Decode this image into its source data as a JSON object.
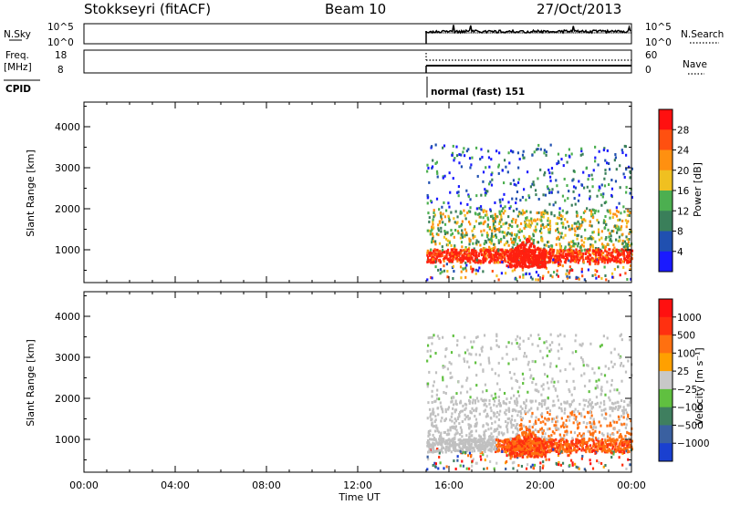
{
  "header": {
    "station": "Stokkseyri (fitACF)",
    "beam": "Beam 10",
    "date": "27/Oct/2013"
  },
  "panels": {
    "nsky": {
      "left_label": "N.Sky",
      "left_ticks": [
        "10^5",
        "10^0"
      ],
      "right_ticks": [
        "10^5",
        "10^0"
      ],
      "right_label": "N.Search"
    },
    "freq": {
      "left_label_line1": "Freq.",
      "left_label_line2": "[MHz]",
      "left_ticks": [
        "18",
        "8"
      ],
      "right_ticks": [
        "60",
        "0"
      ],
      "right_label": "Nave"
    },
    "cpid": {
      "label": "CPID",
      "text": "normal (fast) 151"
    }
  },
  "colors": {
    "power_scale": [
      "#1a1aff",
      "#2050b0",
      "#3a7f5a",
      "#4caf50",
      "#f0c020",
      "#ff9010",
      "#ff5010",
      "#ff1010"
    ],
    "velocity_scale": [
      "#1a40d0",
      "#3a60a0",
      "#3f7f5f",
      "#60c040",
      "#c8c8c8",
      "#ffa000",
      "#ff7010",
      "#ff3010",
      "#ff1010"
    ],
    "power_red": "#ff2010",
    "vel_gray": "#c0c0c0"
  },
  "chart_data": [
    {
      "type": "heatmap",
      "name": "power",
      "ylabel": "Slant Range [km]",
      "y_ticks": [
        "1000",
        "2000",
        "3000",
        "4000"
      ],
      "ylim": [
        200,
        4600
      ],
      "colorbar_label": "Power [dB]",
      "colorbar_ticks": [
        "4",
        "8",
        "12",
        "16",
        "20",
        "24",
        "28"
      ],
      "data_start": "15:00",
      "data_end": "00:00"
    },
    {
      "type": "heatmap",
      "name": "velocity",
      "ylabel": "Slant Range [km]",
      "y_ticks": [
        "1000",
        "2000",
        "3000",
        "4000"
      ],
      "ylim": [
        200,
        4600
      ],
      "colorbar_label": "Velocity [m s⁻¹]",
      "colorbar_ticks": [
        "1000",
        "500",
        "100",
        "25",
        "−25",
        "−100",
        "−500",
        "−1000"
      ],
      "data_start": "15:00",
      "data_end": "00:00"
    }
  ],
  "xaxis": {
    "ticks": [
      "00:00",
      "04:00",
      "08:00",
      "12:00",
      "16:00",
      "20:00",
      "00:00"
    ],
    "xlabel": "Time UT",
    "range_hours": [
      0,
      24
    ]
  }
}
